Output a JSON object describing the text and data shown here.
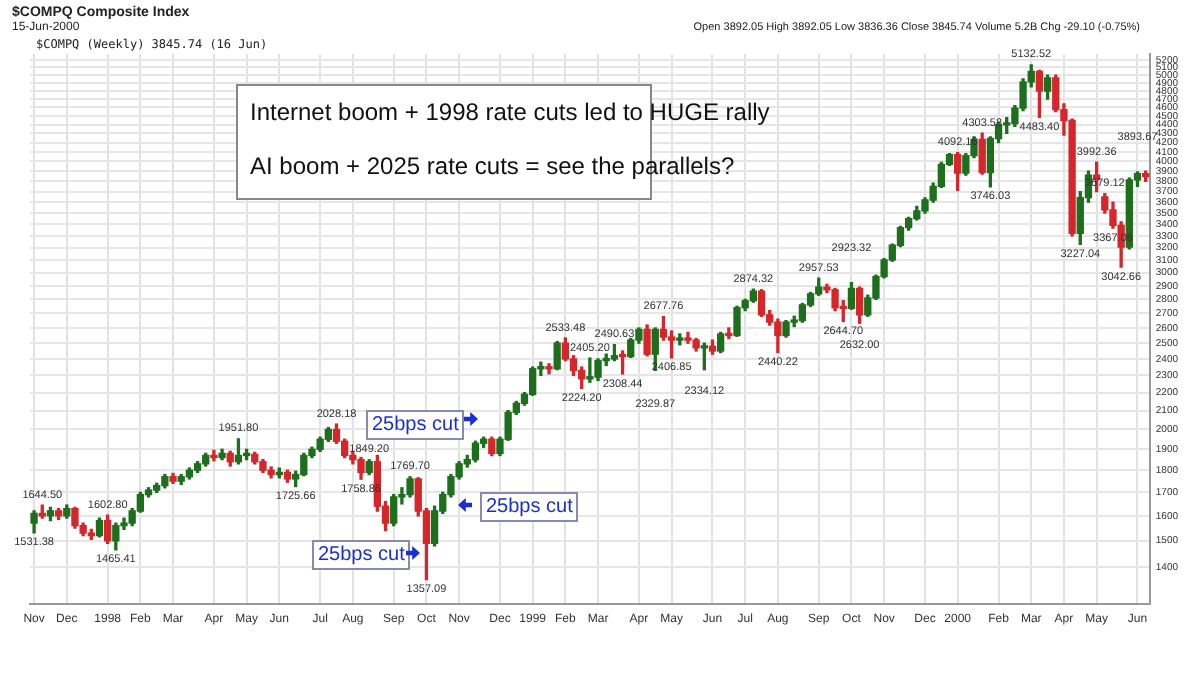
{
  "chart_data": {
    "type": "candlestick",
    "title": "$COMPQ Composite Index",
    "subtitle": "15-Jun-2000",
    "categories": [
      "Nov",
      null,
      null,
      null,
      "Dec",
      null,
      null,
      null,
      null,
      "1998",
      null,
      null,
      null,
      "Feb",
      null,
      null,
      null,
      "Mar",
      null,
      null,
      null,
      null,
      "Apr",
      null,
      null,
      null,
      "May",
      null,
      null,
      null,
      "Jun",
      null,
      null,
      null,
      null,
      "Jul",
      null,
      null,
      null,
      "Aug",
      null,
      null,
      null,
      null,
      "Sep",
      null,
      null,
      null,
      "Oct",
      null,
      null,
      null,
      "Nov",
      null,
      null,
      null,
      null,
      "Dec",
      null,
      null,
      null,
      "1999",
      null,
      null,
      null,
      "Feb",
      null,
      null,
      null,
      "Mar",
      null,
      null,
      null,
      null,
      "Apr",
      null,
      null,
      null,
      "May",
      null,
      null,
      null,
      null,
      "Jun",
      null,
      null,
      null,
      "Jul",
      null,
      null,
      null,
      "Aug",
      null,
      null,
      null,
      null,
      "Sep",
      null,
      null,
      null,
      "Oct",
      null,
      null,
      null,
      "Nov",
      null,
      null,
      null,
      null,
      "Dec",
      null,
      null,
      null,
      "2000",
      null,
      null,
      null,
      null,
      "Feb",
      null,
      null,
      null,
      "Mar",
      null,
      null,
      null,
      "Apr",
      null,
      null,
      null,
      "May",
      null,
      null,
      null,
      null,
      "Jun",
      null
    ],
    "ohlc": [
      [
        1570,
        1620,
        1531.38,
        1610
      ],
      [
        1610,
        1644.5,
        1590,
        1600
      ],
      [
        1600,
        1635,
        1580,
        1620
      ],
      [
        1620,
        1630,
        1585,
        1600
      ],
      [
        1600,
        1645,
        1590,
        1630
      ],
      [
        1630,
        1635,
        1550,
        1560
      ],
      [
        1560,
        1570,
        1520,
        1530
      ],
      [
        1530,
        1545,
        1505,
        1520
      ],
      [
        1520,
        1590,
        1515,
        1580
      ],
      [
        1580,
        1602.8,
        1490,
        1500
      ],
      [
        1500,
        1570,
        1465.41,
        1560
      ],
      [
        1560,
        1590,
        1545,
        1570
      ],
      [
        1570,
        1630,
        1560,
        1620
      ],
      [
        1620,
        1700,
        1615,
        1690
      ],
      [
        1690,
        1720,
        1680,
        1710
      ],
      [
        1710,
        1740,
        1700,
        1730
      ],
      [
        1730,
        1780,
        1720,
        1770
      ],
      [
        1770,
        1785,
        1740,
        1750
      ],
      [
        1750,
        1780,
        1735,
        1770
      ],
      [
        1770,
        1810,
        1760,
        1800
      ],
      [
        1800,
        1840,
        1790,
        1830
      ],
      [
        1830,
        1880,
        1820,
        1870
      ],
      [
        1870,
        1895,
        1845,
        1860
      ],
      [
        1860,
        1900,
        1850,
        1880
      ],
      [
        1880,
        1890,
        1820,
        1840
      ],
      [
        1840,
        1951.8,
        1830,
        1870
      ],
      [
        1870,
        1900,
        1850,
        1875
      ],
      [
        1875,
        1885,
        1830,
        1840
      ],
      [
        1840,
        1850,
        1790,
        1800
      ],
      [
        1800,
        1815,
        1765,
        1780
      ],
      [
        1780,
        1810,
        1765,
        1790
      ],
      [
        1790,
        1800,
        1745,
        1760
      ],
      [
        1760,
        1795,
        1725.66,
        1780
      ],
      [
        1780,
        1880,
        1775,
        1870
      ],
      [
        1870,
        1910,
        1860,
        1900
      ],
      [
        1900,
        1960,
        1890,
        1950
      ],
      [
        1950,
        2010,
        1940,
        2000
      ],
      [
        2000,
        2028.18,
        1930,
        1940
      ],
      [
        1940,
        1950,
        1860,
        1870
      ],
      [
        1870,
        1890,
        1830,
        1850
      ],
      [
        1850,
        1860,
        1758.86,
        1790
      ],
      [
        1790,
        1849.2,
        1780,
        1840
      ],
      [
        1840,
        1870,
        1620,
        1640
      ],
      [
        1640,
        1660,
        1540,
        1570
      ],
      [
        1570,
        1690,
        1560,
        1680
      ],
      [
        1680,
        1720,
        1650,
        1690
      ],
      [
        1690,
        1769.7,
        1680,
        1760
      ],
      [
        1760,
        1765,
        1600,
        1620
      ],
      [
        1620,
        1630,
        1357.09,
        1490
      ],
      [
        1490,
        1640,
        1480,
        1620
      ],
      [
        1620,
        1700,
        1610,
        1690
      ],
      [
        1690,
        1780,
        1680,
        1770
      ],
      [
        1770,
        1840,
        1760,
        1830
      ],
      [
        1830,
        1870,
        1815,
        1850
      ],
      [
        1850,
        1940,
        1840,
        1930
      ],
      [
        1930,
        1960,
        1910,
        1950
      ],
      [
        1950,
        1960,
        1870,
        1880
      ],
      [
        1880,
        1960,
        1870,
        1950
      ],
      [
        1950,
        2100,
        1945,
        2090
      ],
      [
        2090,
        2150,
        2080,
        2140
      ],
      [
        2140,
        2200,
        2130,
        2190
      ],
      [
        2190,
        2350,
        2185,
        2340
      ],
      [
        2340,
        2380,
        2300,
        2350
      ],
      [
        2350,
        2370,
        2310,
        2340
      ],
      [
        2340,
        2510,
        2335,
        2500
      ],
      [
        2500,
        2533.48,
        2390,
        2400
      ],
      [
        2400,
        2420,
        2300,
        2330
      ],
      [
        2330,
        2350,
        2224.2,
        2280
      ],
      [
        2280,
        2405.2,
        2260,
        2290
      ],
      [
        2290,
        2400,
        2270,
        2390
      ],
      [
        2390,
        2430,
        2360,
        2400
      ],
      [
        2400,
        2490.63,
        2390,
        2420
      ],
      [
        2420,
        2450,
        2308.44,
        2415
      ],
      [
        2415,
        2530,
        2410,
        2520
      ],
      [
        2520,
        2600,
        2500,
        2590
      ],
      [
        2590,
        2620,
        2420,
        2430
      ],
      [
        2430,
        2600,
        2329.87,
        2590
      ],
      [
        2590,
        2677.76,
        2520,
        2540
      ],
      [
        2540,
        2580,
        2406.85,
        2520
      ],
      [
        2520,
        2560,
        2490,
        2530
      ],
      [
        2530,
        2570,
        2500,
        2520
      ],
      [
        2520,
        2530,
        2450,
        2470
      ],
      [
        2470,
        2500,
        2334.12,
        2480
      ],
      [
        2480,
        2520,
        2430,
        2450
      ],
      [
        2450,
        2570,
        2440,
        2560
      ],
      [
        2560,
        2600,
        2530,
        2550
      ],
      [
        2550,
        2750,
        2545,
        2740
      ],
      [
        2740,
        2800,
        2720,
        2790
      ],
      [
        2790,
        2874.32,
        2780,
        2860
      ],
      [
        2860,
        2870,
        2680,
        2690
      ],
      [
        2690,
        2720,
        2620,
        2640
      ],
      [
        2640,
        2660,
        2440.22,
        2550
      ],
      [
        2550,
        2650,
        2540,
        2640
      ],
      [
        2640,
        2680,
        2610,
        2650
      ],
      [
        2650,
        2770,
        2640,
        2760
      ],
      [
        2760,
        2850,
        2750,
        2840
      ],
      [
        2840,
        2957.53,
        2830,
        2890
      ],
      [
        2890,
        2910,
        2850,
        2870
      ],
      [
        2870,
        2880,
        2720,
        2740
      ],
      [
        2740,
        2790,
        2644.7,
        2735
      ],
      [
        2735,
        2923.32,
        2730,
        2880
      ],
      [
        2880,
        2890,
        2632.0,
        2690
      ],
      [
        2690,
        2830,
        2680,
        2810
      ],
      [
        2810,
        2980,
        2800,
        2970
      ],
      [
        2970,
        3110,
        2960,
        3100
      ],
      [
        3100,
        3230,
        3090,
        3220
      ],
      [
        3220,
        3380,
        3210,
        3370
      ],
      [
        3370,
        3460,
        3350,
        3450
      ],
      [
        3450,
        3560,
        3440,
        3520
      ],
      [
        3520,
        3640,
        3500,
        3620
      ],
      [
        3620,
        3780,
        3600,
        3750
      ],
      [
        3750,
        3990,
        3740,
        3970
      ],
      [
        3970,
        4080,
        3960,
        4069
      ],
      [
        4069,
        4092.16,
        3711,
        3880
      ],
      [
        3880,
        4080,
        3860,
        4060
      ],
      [
        4060,
        4260,
        4040,
        4235
      ],
      [
        4235,
        4303.58,
        3870,
        3887
      ],
      [
        3887,
        4260,
        3746.03,
        4244
      ],
      [
        4244,
        4420,
        4200,
        4395
      ],
      [
        4395,
        4480,
        4300,
        4411
      ],
      [
        4411,
        4620,
        4380,
        4590
      ],
      [
        4590,
        4950,
        4560,
        4914
      ],
      [
        4914,
        5132.52,
        4850,
        5048
      ],
      [
        5048,
        5060,
        4483.4,
        4798
      ],
      [
        4798,
        5000,
        4700,
        4963
      ],
      [
        4963,
        5000,
        4550,
        4573
      ],
      [
        4573,
        4640,
        4280,
        4446
      ],
      [
        4446,
        4460,
        3300,
        3321
      ],
      [
        3321,
        3700,
        3227.04,
        3643
      ],
      [
        3643,
        3900,
        3600,
        3860
      ],
      [
        3860,
        3992.36,
        3700,
        3816
      ],
      [
        3650,
        3679.12,
        3500,
        3529
      ],
      [
        3529,
        3600,
        3367.06,
        3390
      ],
      [
        3390,
        3420,
        3042.66,
        3205
      ],
      [
        3205,
        3830,
        3190,
        3813
      ],
      [
        3813,
        3893.67,
        3750,
        3874
      ],
      [
        3874,
        3900,
        3800,
        3845.74
      ]
    ],
    "colors": [
      "#1d6f1d",
      "#d4262b",
      "#1d6f1d",
      "#d4262b",
      "#1d6f1d",
      "#d4262b",
      "#d4262b",
      "#d4262b",
      "#1d6f1d",
      "#d4262b",
      "#1d6f1d",
      "#1d6f1d",
      "#1d6f1d",
      "#1d6f1d",
      "#1d6f1d",
      "#1d6f1d",
      "#1d6f1d",
      "#d4262b",
      "#1d6f1d",
      "#1d6f1d",
      "#1d6f1d",
      "#1d6f1d",
      "#d4262b",
      "#1d6f1d",
      "#d4262b",
      "#1d6f1d",
      "#1d6f1d",
      "#d4262b",
      "#d4262b",
      "#d4262b",
      "#1d6f1d",
      "#d4262b",
      "#1d6f1d",
      "#1d6f1d",
      "#1d6f1d",
      "#1d6f1d",
      "#1d6f1d",
      "#d4262b",
      "#d4262b",
      "#d4262b",
      "#d4262b",
      "#1d6f1d",
      "#d4262b",
      "#d4262b",
      "#1d6f1d",
      "#1d6f1d",
      "#1d6f1d",
      "#d4262b",
      "#d4262b",
      "#1d6f1d",
      "#1d6f1d",
      "#1d6f1d",
      "#1d6f1d",
      "#1d6f1d",
      "#1d6f1d",
      "#1d6f1d",
      "#d4262b",
      "#1d6f1d",
      "#1d6f1d",
      "#1d6f1d",
      "#1d6f1d",
      "#1d6f1d",
      "#1d6f1d",
      "#d4262b",
      "#1d6f1d",
      "#d4262b",
      "#d4262b",
      "#d4262b",
      "#1d6f1d",
      "#1d6f1d",
      "#1d6f1d",
      "#1d6f1d",
      "#d4262b",
      "#1d6f1d",
      "#1d6f1d",
      "#d4262b",
      "#1d6f1d",
      "#d4262b",
      "#d4262b",
      "#1d6f1d",
      "#d4262b",
      "#d4262b",
      "#1d6f1d",
      "#d4262b",
      "#1d6f1d",
      "#d4262b",
      "#1d6f1d",
      "#1d6f1d",
      "#1d6f1d",
      "#d4262b",
      "#d4262b",
      "#d4262b",
      "#1d6f1d",
      "#1d6f1d",
      "#1d6f1d",
      "#1d6f1d",
      "#1d6f1d",
      "#d4262b",
      "#d4262b",
      "#d4262b",
      "#1d6f1d",
      "#d4262b",
      "#1d6f1d",
      "#1d6f1d",
      "#1d6f1d",
      "#1d6f1d",
      "#1d6f1d",
      "#1d6f1d",
      "#1d6f1d",
      "#1d6f1d",
      "#1d6f1d",
      "#1d6f1d",
      "#1d6f1d",
      "#d4262b",
      "#1d6f1d",
      "#1d6f1d",
      "#d4262b",
      "#1d6f1d",
      "#1d6f1d",
      "#1d6f1d",
      "#1d6f1d",
      "#1d6f1d",
      "#1d6f1d",
      "#d4262b",
      "#1d6f1d",
      "#d4262b",
      "#d4262b",
      "#d4262b",
      "#1d6f1d",
      "#1d6f1d",
      "#d4262b",
      "#d4262b",
      "#d4262b",
      "#d4262b",
      "#1d6f1d",
      "#1d6f1d",
      "#d4262b"
    ],
    "ylim": [
      1275,
      5280
    ],
    "yticks": [
      1400,
      1500,
      1600,
      1700,
      1800,
      1900,
      2000,
      2100,
      2200,
      2300,
      2400,
      2500,
      2600,
      2700,
      2800,
      2900,
      3000,
      3100,
      3200,
      3300,
      3400,
      3500,
      3600,
      3700,
      3800,
      3900,
      4000,
      4100,
      4200,
      4300,
      4400,
      4500,
      4600,
      4700,
      4800,
      4900,
      5000,
      5100,
      5200
    ],
    "log": true,
    "grid": true,
    "annotations": [
      "Internet boom + 1998 rate cuts led to HUGE rally",
      "AI boom + 2025 rate cuts = see the parallels?",
      "25bps cut",
      "25bps cut",
      "25bps cut",
      "$COMPQ (Weekly) 3845.74 (16 Jun)",
      "Open 3892.05 High 3892.05 Low 3836.36 Close 3845.74 Volume 5.2B Chg -29.10 (-0.75%)",
      {
        "text": "1644.50",
        "y": 1644.5
      },
      {
        "text": "1531.38",
        "y": 1531.38
      },
      {
        "text": "1602.80",
        "y": 1602.8
      },
      {
        "text": "1465.41",
        "y": 1465.41
      },
      {
        "text": "1951.80",
        "y": 1951.8
      },
      {
        "text": "1725.66",
        "y": 1725.66
      },
      {
        "text": "2028.18",
        "y": 2028.18
      },
      {
        "text": "1758.86",
        "y": 1758.86
      },
      {
        "text": "1849.20",
        "y": 1849.2
      },
      {
        "text": "1769.70",
        "y": 1769.7
      },
      {
        "text": "1357.09",
        "y": 1357.09
      },
      {
        "text": "2533.48",
        "y": 2533.48
      },
      {
        "text": "2224.20",
        "y": 2224.2
      },
      {
        "text": "2405.20",
        "y": 2405.2
      },
      {
        "text": "2490.63",
        "y": 2490.63
      },
      {
        "text": "2308.44",
        "y": 2308.44
      },
      {
        "text": "2677.76",
        "y": 2677.76
      },
      {
        "text": "2329.87",
        "y": 2329.87
      },
      {
        "text": "2406.85",
        "y": 2406.85
      },
      {
        "text": "2334.12",
        "y": 2334.12
      },
      {
        "text": "2874.32",
        "y": 2874.32
      },
      {
        "text": "2440.22",
        "y": 2440.22
      },
      {
        "text": "2957.53",
        "y": 2957.53
      },
      {
        "text": "2644.70",
        "y": 2644.7
      },
      {
        "text": "2923.32",
        "y": 2923.32
      },
      {
        "text": "2632.00",
        "y": 2632.0
      },
      {
        "text": "4092.16",
        "y": 4092.16
      },
      {
        "text": "4303.58",
        "y": 4303.58
      },
      {
        "text": "3746.03",
        "y": 3746.03
      },
      {
        "text": "5132.52",
        "y": 5132.52
      },
      {
        "text": "4483.40",
        "y": 4483.4
      },
      {
        "text": "3227.04",
        "y": 3227.04
      },
      {
        "text": "3992.36",
        "y": 3992.36
      },
      {
        "text": "3679.12",
        "y": 3679.12
      },
      {
        "text": "3367.06",
        "y": 3367.06
      },
      {
        "text": "3042.66",
        "y": 3042.66
      },
      {
        "text": "3893.67",
        "y": 3893.67
      }
    ]
  }
}
